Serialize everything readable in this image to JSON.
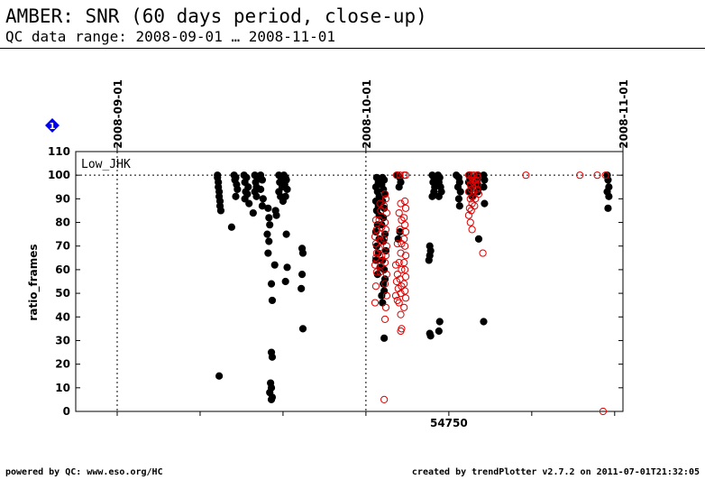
{
  "header": {
    "title": "AMBER: SNR (60 days period, close-up)",
    "subtitle": "QC data range: 2008-09-01 … 2008-11-01"
  },
  "footer": {
    "left": "powered by QC: www.eso.org/HC",
    "right": "created by trendPlotter v2.7.2 on 2011-07-01T21:32:05"
  },
  "marker": {
    "label": "1",
    "color": "#0000ee"
  },
  "chart_data": {
    "type": "scatter",
    "panel_label": "Low_JHK",
    "ylabel": "ratio_frames",
    "xlabel": "",
    "ylim": [
      0,
      110
    ],
    "xlim": [
      54705.0,
      54771.0
    ],
    "y_ticks": [
      0,
      10,
      20,
      30,
      40,
      50,
      60,
      70,
      80,
      90,
      100,
      110
    ],
    "x_tick_label": "54750",
    "x_tick_label_value": 54750,
    "x_minor_ticks": [
      54710,
      54720,
      54730,
      54740,
      54750,
      54760,
      54770
    ],
    "reference_line": 100,
    "grid": false,
    "date_markers": [
      {
        "label": "2008-09-01",
        "x": 54710
      },
      {
        "label": "2008-10-01",
        "x": 54740
      },
      {
        "label": "2008-11-01",
        "x": 54771
      }
    ],
    "colors": {
      "filled": "#000000",
      "open": "#dd0000",
      "axis": "#000000"
    },
    "series": [
      {
        "style": "filled",
        "color": "#000000",
        "points": [
          [
            54722.1,
            100
          ],
          [
            54722.1,
            99
          ],
          [
            54722.2,
            97
          ],
          [
            54722.2,
            95
          ],
          [
            54722.3,
            93
          ],
          [
            54722.3,
            91
          ],
          [
            54722.4,
            89
          ],
          [
            54722.4,
            87
          ],
          [
            54722.5,
            85
          ],
          [
            54722.3,
            15
          ],
          [
            54723.8,
            78
          ],
          [
            54724.1,
            100
          ],
          [
            54724.3,
            99
          ],
          [
            54724.2,
            98
          ],
          [
            54724.4,
            96
          ],
          [
            54724.5,
            94
          ],
          [
            54724.3,
            91
          ],
          [
            54725.3,
            100
          ],
          [
            54725.6,
            99
          ],
          [
            54725.4,
            97
          ],
          [
            54725.8,
            95
          ],
          [
            54725.5,
            93
          ],
          [
            54725.7,
            92
          ],
          [
            54725.4,
            90
          ],
          [
            54725.9,
            88
          ],
          [
            54726.6,
            100
          ],
          [
            54726.9,
            99
          ],
          [
            54726.7,
            97
          ],
          [
            54726.8,
            95
          ],
          [
            54726.6,
            93
          ],
          [
            54726.8,
            91
          ],
          [
            54726.4,
            84
          ],
          [
            54727.3,
            100
          ],
          [
            54727.5,
            98
          ],
          [
            54727.3,
            94
          ],
          [
            54727.6,
            90
          ],
          [
            54727.5,
            87
          ],
          [
            54728.2,
            86
          ],
          [
            54728.3,
            82
          ],
          [
            54728.4,
            79
          ],
          [
            54728.1,
            75
          ],
          [
            54728.3,
            72
          ],
          [
            54728.2,
            67
          ],
          [
            54728.6,
            54
          ],
          [
            54728.7,
            47
          ],
          [
            54728.6,
            25
          ],
          [
            54728.7,
            23
          ],
          [
            54728.5,
            12
          ],
          [
            54728.6,
            10
          ],
          [
            54728.4,
            8
          ],
          [
            54728.7,
            6
          ],
          [
            54728.6,
            5
          ],
          [
            54729.1,
            85
          ],
          [
            54729.2,
            83
          ],
          [
            54729.0,
            62
          ],
          [
            54729.5,
            100
          ],
          [
            54729.8,
            99
          ],
          [
            54729.6,
            97
          ],
          [
            54729.9,
            95
          ],
          [
            54729.5,
            93
          ],
          [
            54729.7,
            91
          ],
          [
            54730.0,
            89
          ],
          [
            54730.1,
            100
          ],
          [
            54730.3,
            99
          ],
          [
            54730.4,
            98
          ],
          [
            54730.2,
            96
          ],
          [
            54730.5,
            94
          ],
          [
            54730.3,
            91
          ],
          [
            54730.4,
            75
          ],
          [
            54730.5,
            61
          ],
          [
            54730.3,
            55
          ],
          [
            54732.3,
            69
          ],
          [
            54732.4,
            67
          ],
          [
            54732.3,
            58
          ],
          [
            54732.2,
            52
          ],
          [
            54732.4,
            35
          ],
          [
            54741.3,
            99
          ],
          [
            54741.5,
            97
          ],
          [
            54741.2,
            95
          ],
          [
            54741.4,
            93
          ],
          [
            54741.6,
            91
          ],
          [
            54741.2,
            89
          ],
          [
            54741.5,
            87
          ],
          [
            54741.3,
            85
          ],
          [
            54741.6,
            83
          ],
          [
            54741.4,
            79
          ],
          [
            54741.2,
            76
          ],
          [
            54741.6,
            73
          ],
          [
            54741.3,
            70
          ],
          [
            54741.5,
            67
          ],
          [
            54741.2,
            64
          ],
          [
            54741.7,
            61
          ],
          [
            54741.4,
            58
          ],
          [
            54742.0,
            99
          ],
          [
            54742.2,
            98
          ],
          [
            54741.9,
            96
          ],
          [
            54742.1,
            94
          ],
          [
            54742.3,
            92
          ],
          [
            54742.0,
            89
          ],
          [
            54742.2,
            86
          ],
          [
            54742.1,
            82
          ],
          [
            54741.9,
            79
          ],
          [
            54742.3,
            75
          ],
          [
            54742.1,
            72
          ],
          [
            54742.4,
            68
          ],
          [
            54742.0,
            64
          ],
          [
            54742.2,
            60
          ],
          [
            54742.3,
            56
          ],
          [
            54742.1,
            54
          ],
          [
            54742.2,
            51
          ],
          [
            54741.9,
            49
          ],
          [
            54742.0,
            46
          ],
          [
            54742.2,
            31
          ],
          [
            54743.8,
            100
          ],
          [
            54744.1,
            99
          ],
          [
            54744.2,
            97
          ],
          [
            54744.0,
            95
          ],
          [
            54744.1,
            76
          ],
          [
            54743.9,
            73
          ],
          [
            54747.7,
            70
          ],
          [
            54747.8,
            68
          ],
          [
            54747.7,
            66
          ],
          [
            54747.6,
            64
          ],
          [
            54747.7,
            33
          ],
          [
            54747.8,
            32
          ],
          [
            54748.0,
            100
          ],
          [
            54748.2,
            99
          ],
          [
            54748.1,
            97
          ],
          [
            54748.3,
            95
          ],
          [
            54748.2,
            93
          ],
          [
            54748.0,
            91
          ],
          [
            54748.7,
            100
          ],
          [
            54748.9,
            99
          ],
          [
            54748.8,
            97
          ],
          [
            54749.0,
            95
          ],
          [
            54749.1,
            93
          ],
          [
            54748.8,
            91
          ],
          [
            54748.9,
            38
          ],
          [
            54748.8,
            34
          ],
          [
            54750.9,
            100
          ],
          [
            54751.2,
            99
          ],
          [
            54751.3,
            97
          ],
          [
            54751.1,
            95
          ],
          [
            54751.4,
            93
          ],
          [
            54751.2,
            90
          ],
          [
            54751.3,
            87
          ],
          [
            54752.5,
            100
          ],
          [
            54752.6,
            99
          ],
          [
            54752.4,
            97
          ],
          [
            54752.7,
            95
          ],
          [
            54752.5,
            93
          ],
          [
            54752.8,
            91
          ],
          [
            54753.5,
            100
          ],
          [
            54753.6,
            99
          ],
          [
            54753.4,
            97
          ],
          [
            54753.7,
            95
          ],
          [
            54753.5,
            93
          ],
          [
            54753.6,
            73
          ],
          [
            54754.2,
            100
          ],
          [
            54754.3,
            98
          ],
          [
            54754.2,
            95
          ],
          [
            54754.3,
            88
          ],
          [
            54754.2,
            38
          ],
          [
            54769.1,
            100
          ],
          [
            54769.2,
            98
          ],
          [
            54769.3,
            95
          ],
          [
            54769.1,
            93
          ],
          [
            54769.3,
            91
          ],
          [
            54769.2,
            86
          ]
        ]
      },
      {
        "style": "open",
        "color": "#dd0000",
        "points": [
          [
            54741.2,
            81
          ],
          [
            54741.3,
            77
          ],
          [
            54741.1,
            74
          ],
          [
            54741.2,
            71
          ],
          [
            54741.3,
            67
          ],
          [
            54741.2,
            65
          ],
          [
            54741.1,
            62
          ],
          [
            54741.3,
            59
          ],
          [
            54741.2,
            53
          ],
          [
            54741.1,
            46
          ],
          [
            54741.7,
            88
          ],
          [
            54741.8,
            85
          ],
          [
            54741.6,
            81
          ],
          [
            54741.9,
            78
          ],
          [
            54741.7,
            75
          ],
          [
            54741.8,
            72
          ],
          [
            54741.6,
            69
          ],
          [
            54741.9,
            66
          ],
          [
            54741.8,
            62
          ],
          [
            54741.7,
            59
          ],
          [
            54742.3,
            92
          ],
          [
            54742.4,
            90
          ],
          [
            54742.2,
            87
          ],
          [
            54742.5,
            84
          ],
          [
            54742.3,
            80
          ],
          [
            54742.4,
            77
          ],
          [
            54742.2,
            73
          ],
          [
            54742.5,
            70
          ],
          [
            54742.4,
            66
          ],
          [
            54742.3,
            63
          ],
          [
            54742.5,
            58
          ],
          [
            54742.3,
            54
          ],
          [
            54742.5,
            49
          ],
          [
            54742.4,
            44
          ],
          [
            54742.3,
            39
          ],
          [
            54742.2,
            5
          ],
          [
            54743.7,
            100
          ],
          [
            54743.8,
            71
          ],
          [
            54743.6,
            62
          ],
          [
            54743.8,
            58
          ],
          [
            54743.7,
            55
          ],
          [
            54743.9,
            52
          ],
          [
            54743.6,
            49
          ],
          [
            54743.8,
            47
          ],
          [
            54744.1,
            100
          ],
          [
            54744.2,
            88
          ],
          [
            54744.0,
            84
          ],
          [
            54744.3,
            81
          ],
          [
            54744.1,
            77
          ],
          [
            54744.3,
            71
          ],
          [
            54744.2,
            67
          ],
          [
            54744.0,
            63
          ],
          [
            54744.3,
            60
          ],
          [
            54744.1,
            56
          ],
          [
            54744.3,
            53
          ],
          [
            54744.2,
            50
          ],
          [
            54744.0,
            46
          ],
          [
            54744.2,
            41
          ],
          [
            54744.3,
            35
          ],
          [
            54744.2,
            34
          ],
          [
            54744.6,
            100
          ],
          [
            54744.8,
            100
          ],
          [
            54744.7,
            89
          ],
          [
            54744.8,
            86
          ],
          [
            54744.6,
            82
          ],
          [
            54744.7,
            79
          ],
          [
            54744.8,
            76
          ],
          [
            54744.6,
            73
          ],
          [
            54744.7,
            70
          ],
          [
            54744.8,
            66
          ],
          [
            54744.6,
            63
          ],
          [
            54744.7,
            60
          ],
          [
            54744.8,
            57
          ],
          [
            54744.6,
            54
          ],
          [
            54744.7,
            51
          ],
          [
            54744.8,
            48
          ],
          [
            54744.6,
            44
          ],
          [
            54752.4,
            100
          ],
          [
            54752.5,
            98
          ],
          [
            54752.6,
            96
          ],
          [
            54752.4,
            93
          ],
          [
            54752.6,
            90
          ],
          [
            54752.5,
            86
          ],
          [
            54752.4,
            83
          ],
          [
            54752.6,
            80
          ],
          [
            54752.7,
            100
          ],
          [
            54752.8,
            99
          ],
          [
            54752.9,
            97
          ],
          [
            54752.7,
            94
          ],
          [
            54752.9,
            91
          ],
          [
            54752.8,
            88
          ],
          [
            54752.7,
            85
          ],
          [
            54752.8,
            77
          ],
          [
            54753.0,
            100
          ],
          [
            54753.1,
            98
          ],
          [
            54753.2,
            96
          ],
          [
            54753.0,
            93
          ],
          [
            54753.2,
            90
          ],
          [
            54753.1,
            87
          ],
          [
            54753.4,
            100
          ],
          [
            54753.5,
            99
          ],
          [
            54753.3,
            98
          ],
          [
            54753.5,
            96
          ],
          [
            54753.4,
            94
          ],
          [
            54753.6,
            92
          ],
          [
            54754.1,
            67
          ],
          [
            54759.3,
            100
          ],
          [
            54765.8,
            100
          ],
          [
            54767.9,
            100
          ],
          [
            54768.9,
            100
          ],
          [
            54768.6,
            0
          ]
        ]
      }
    ]
  }
}
